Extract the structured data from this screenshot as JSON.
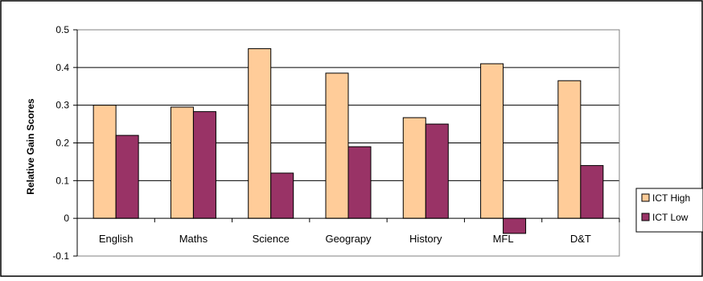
{
  "chart_data": {
    "type": "bar",
    "title": "",
    "xlabel": "",
    "ylabel": "Relative Gain Scores",
    "categories": [
      "English",
      "Maths",
      "Science",
      "Geograpy",
      "History",
      "MFL",
      "D&T"
    ],
    "series": [
      {
        "name": "ICT High",
        "color": "#FFCC99",
        "values": [
          0.3,
          0.295,
          0.45,
          0.385,
          0.267,
          0.41,
          0.365
        ]
      },
      {
        "name": "ICT Low",
        "color": "#993366",
        "values": [
          0.22,
          0.283,
          0.12,
          0.19,
          0.25,
          -0.04,
          0.14
        ]
      }
    ],
    "ylim": [
      -0.1,
      0.5
    ],
    "yticks": [
      -0.1,
      0,
      0.1,
      0.2,
      0.3,
      0.4,
      0.5
    ],
    "grid": true,
    "legend": "right"
  }
}
